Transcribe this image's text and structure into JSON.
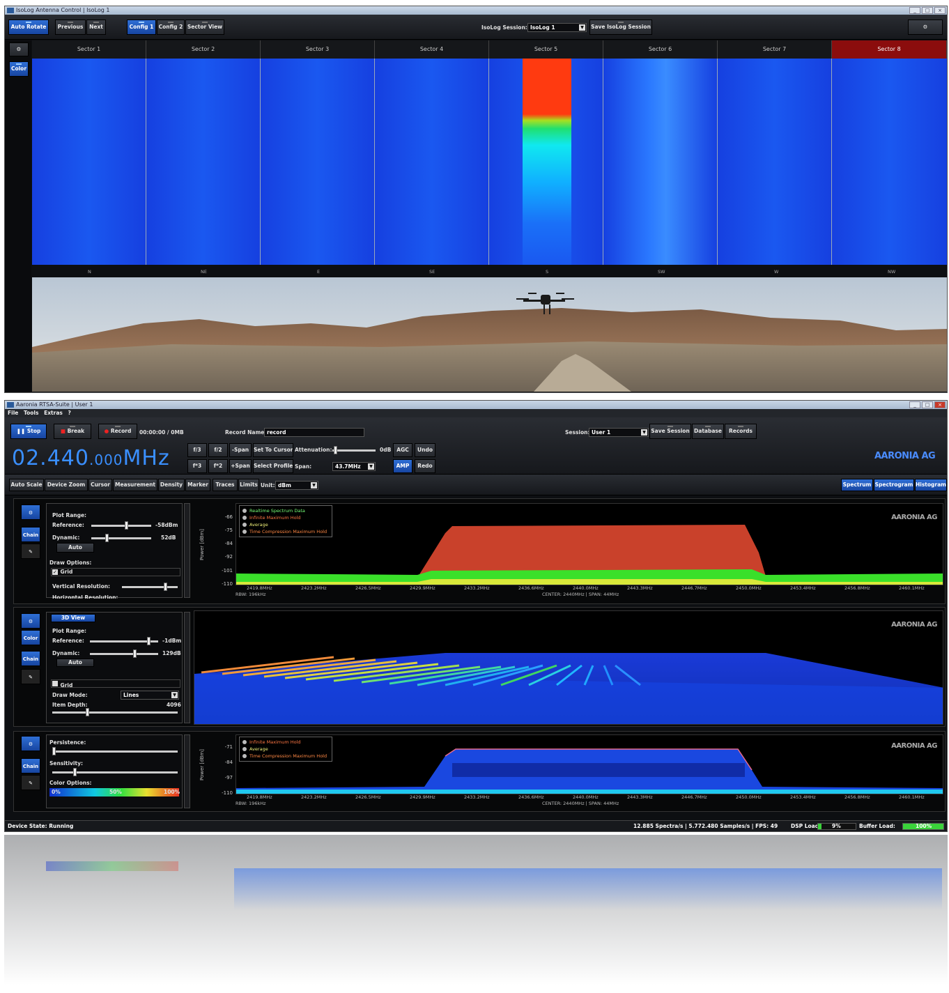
{
  "isolog": {
    "title": "IsoLog Antenna Control | IsoLog 1",
    "toolbar": {
      "auto_rotate": "Auto Rotate",
      "previous": "Previous",
      "next": "Next",
      "config1": "Config 1",
      "config2": "Config 2",
      "sector_view": "Sector View",
      "session_label": "IsoLog Session:",
      "session_value": "IsoLog 1",
      "save_session": "Save IsoLog Session"
    },
    "color_button": "Color",
    "sectors": [
      "Sector 1",
      "Sector 2",
      "Sector 3",
      "Sector 4",
      "Sector 5",
      "Sector 6",
      "Sector 7",
      "Sector 8"
    ],
    "active_sector_color": "#8b0d0d",
    "directions": [
      "N",
      "NE",
      "E",
      "SE",
      "S",
      "SW",
      "W",
      "NW"
    ]
  },
  "rtsa": {
    "title": "Aaronia RTSA-Suite | User 1",
    "menu": [
      "File",
      "Tools",
      "Extras",
      "?"
    ],
    "toolbar": {
      "stop": "Stop",
      "break": "Break",
      "record": "Record",
      "record_time": "00:00:00 / 0MB",
      "record_name_label": "Record Name:",
      "record_name_value": "record",
      "session_label": "Session:",
      "session_value": "User 1",
      "save_session": "Save Session",
      "database": "Database",
      "records": "Records"
    },
    "frequency": {
      "main": "02.440",
      "fraction": ".000",
      "unit": "MHz"
    },
    "freq_buttons": [
      "f/3",
      "f/2",
      "-Span",
      "Set To Cursor",
      "f*3",
      "f*2",
      "+Span",
      "Select Profile"
    ],
    "attenuation_label": "Attenuation:",
    "attenuation_value": "0dB",
    "span_label": "Span:",
    "span_value": "43.7MHz",
    "agc": "AGC",
    "amp": "AMP",
    "undo": "Undo",
    "redo": "Redo",
    "logo": "AARONIA AG",
    "tabs": [
      "Auto Scale",
      "Device Zoom",
      "Cursor",
      "Measurement",
      "Density",
      "Marker",
      "Traces",
      "Limits"
    ],
    "unit_label": "Unit:",
    "unit_value": "dBm",
    "views": [
      "Spectrum",
      "Spectrogram",
      "Histogram"
    ],
    "panel1": {
      "buttons": [
        "Chain"
      ],
      "plot_range": "Plot Range:",
      "reference_label": "Reference:",
      "reference_value": "-58dBm",
      "dynamic_label": "Dynamic:",
      "dynamic_value": "52dB",
      "auto": "Auto",
      "draw_options": "Draw Options:",
      "grid": "Grid",
      "vertical_resolution": "Vertical Resolution:",
      "horizontal_resolution": "Horizontal Resolution:",
      "ylabel": "Power [dBm]",
      "yticks": [
        "-66",
        "-75",
        "-84",
        "-92",
        "-101",
        "-110"
      ],
      "legend": [
        "Realtime Spectrum Data",
        "Infinite Maximum Hold",
        "Average",
        "Time Compression Maximum Hold"
      ],
      "xticks": [
        "2419.8MHz",
        "2423.2MHz",
        "2426.5MHz",
        "2429.9MHz",
        "2433.2MHz",
        "2436.6MHz",
        "2440.0MHz",
        "2443.3MHz",
        "2446.7MHz",
        "2450.0MHz",
        "2453.4MHz",
        "2456.8MHz",
        "2460.1MHz"
      ],
      "rbw": "RBW: 196kHz",
      "center": "CENTER: 2440MHz | SPAN: 44MHz"
    },
    "panel2": {
      "view3d": "3D View",
      "buttons": [
        "Color",
        "Chain"
      ],
      "plot_range": "Plot Range:",
      "reference_label": "Reference:",
      "reference_value": "-1dBm",
      "dynamic_label": "Dynamic:",
      "dynamic_value": "129dB",
      "auto": "Auto",
      "grid": "Grid",
      "draw_mode_label": "Draw Mode:",
      "draw_mode_value": "Lines",
      "item_depth_label": "Item Depth:",
      "item_depth_value": "4096"
    },
    "panel3": {
      "buttons": [
        "Chain"
      ],
      "persistence": "Persistence:",
      "sensitivity": "Sensitivity:",
      "color_options": "Color Options:",
      "color_stops": [
        "0%",
        "50%",
        "100%"
      ],
      "ylabel": "Power [dBm]",
      "yticks": [
        "-71",
        "-84",
        "-97",
        "-110"
      ],
      "legend": [
        "Infinite Maximum Hold",
        "Average",
        "Time Compression Maximum Hold"
      ]
    },
    "statusbar": {
      "device_state": "Device State: Running",
      "rates": "12.885 Spectra/s | 5.772.480 Samples/s | FPS: 49",
      "dsp_label": "DSP Load:",
      "dsp_value": "9%",
      "buffer_label": "Buffer Load:",
      "buffer_value": "100%"
    }
  }
}
